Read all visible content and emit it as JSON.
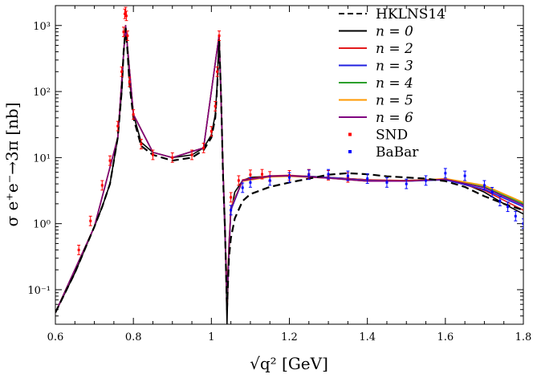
{
  "chart_data": {
    "type": "line",
    "title": "",
    "xlabel": "√q² [GeV]",
    "ylabel": "σ e⁺e⁻→3π [nb]",
    "x_scale": "linear",
    "y_scale": "log",
    "xlim": [
      0.6,
      1.8
    ],
    "ylim": [
      0.03,
      2000
    ],
    "x_ticks": [
      0.6,
      0.8,
      1.0,
      1.2,
      1.4,
      1.6,
      1.8
    ],
    "x_tick_labels": [
      "0.6",
      "0.8",
      "1",
      "1.2",
      "1.4",
      "1.6",
      "1.8"
    ],
    "y_ticks": [
      0.1,
      1,
      10,
      100,
      1000
    ],
    "y_tick_labels": [
      "10⁻¹",
      "10⁰",
      "10¹",
      "10²",
      "10³"
    ],
    "series": [
      {
        "name": "HKLNS14",
        "style": "dashed",
        "color": "#000000",
        "x": [
          0.6,
          0.65,
          0.7,
          0.72,
          0.74,
          0.76,
          0.77,
          0.775,
          0.78,
          0.785,
          0.79,
          0.8,
          0.82,
          0.85,
          0.9,
          0.95,
          0.98,
          1.0,
          1.01,
          1.015,
          1.02,
          1.025,
          1.03,
          1.035,
          1.04,
          1.045,
          1.05,
          1.06,
          1.08,
          1.1,
          1.15,
          1.2,
          1.25,
          1.3,
          1.35,
          1.4,
          1.45,
          1.5,
          1.55,
          1.6,
          1.65,
          1.7,
          1.75,
          1.8
        ],
        "y": [
          0.045,
          0.18,
          0.9,
          1.8,
          4,
          20,
          100,
          400,
          900,
          400,
          130,
          40,
          15,
          11,
          9,
          10,
          13,
          20,
          40,
          120,
          600,
          80,
          5,
          0.8,
          0.05,
          0.3,
          0.6,
          1.2,
          2.2,
          2.8,
          3.6,
          4.2,
          4.8,
          5.5,
          5.8,
          5.6,
          5.2,
          5.0,
          4.8,
          4.4,
          3.6,
          2.6,
          2.0,
          1.6
        ]
      },
      {
        "name": "n = 0",
        "style": "solid",
        "color": "#000000",
        "x": [
          0.6,
          0.65,
          0.7,
          0.72,
          0.74,
          0.76,
          0.77,
          0.775,
          0.78,
          0.785,
          0.79,
          0.8,
          0.82,
          0.85,
          0.9,
          0.95,
          0.98,
          1.0,
          1.01,
          1.015,
          1.02,
          1.025,
          1.03,
          1.035,
          1.04,
          1.045,
          1.05,
          1.06,
          1.08,
          1.1,
          1.15,
          1.2,
          1.25,
          1.3,
          1.35,
          1.4,
          1.45,
          1.5,
          1.55,
          1.6,
          1.65,
          1.7,
          1.75,
          1.8
        ],
        "y": [
          0.045,
          0.18,
          0.9,
          1.8,
          4,
          20,
          100,
          400,
          1000,
          450,
          150,
          45,
          17,
          12,
          10,
          11,
          14,
          22,
          45,
          130,
          700,
          90,
          6,
          1.0,
          0.03,
          0.5,
          1.5,
          3.0,
          4.5,
          5.0,
          5.2,
          5.3,
          5.2,
          5.0,
          4.8,
          4.6,
          4.5,
          4.5,
          4.6,
          4.6,
          4.0,
          3.0,
          2.0,
          1.4
        ]
      },
      {
        "name": "n = 2",
        "style": "solid",
        "color": "#e31a1c",
        "x": [
          0.6,
          0.7,
          0.76,
          0.78,
          0.8,
          0.85,
          0.9,
          0.98,
          1.02,
          1.03,
          1.04,
          1.05,
          1.08,
          1.15,
          1.2,
          1.3,
          1.4,
          1.5,
          1.6,
          1.7,
          1.8
        ],
        "y": [
          0.045,
          0.9,
          20,
          1000,
          45,
          12,
          10,
          14,
          720,
          6,
          0.06,
          1.6,
          4.6,
          5.3,
          5.4,
          5.0,
          4.6,
          4.5,
          4.7,
          3.2,
          1.6
        ]
      },
      {
        "name": "n = 3",
        "style": "solid",
        "color": "#1f1fe0",
        "x": [
          0.6,
          0.7,
          0.76,
          0.78,
          0.8,
          0.85,
          0.9,
          0.98,
          1.02,
          1.03,
          1.04,
          1.05,
          1.08,
          1.15,
          1.2,
          1.3,
          1.4,
          1.5,
          1.6,
          1.7,
          1.8
        ],
        "y": [
          0.045,
          0.9,
          20,
          1000,
          45,
          12,
          10,
          14,
          720,
          6,
          0.07,
          1.6,
          4.5,
          5.2,
          5.3,
          5.0,
          4.5,
          4.4,
          4.6,
          3.3,
          1.8
        ]
      },
      {
        "name": "n = 4",
        "style": "solid",
        "color": "#2ca02c",
        "x": [
          0.6,
          0.7,
          0.76,
          0.78,
          0.8,
          0.85,
          0.9,
          0.98,
          1.02,
          1.03,
          1.04,
          1.05,
          1.08,
          1.15,
          1.2,
          1.3,
          1.4,
          1.5,
          1.6,
          1.7,
          1.8
        ],
        "y": [
          0.045,
          0.9,
          20,
          1000,
          45,
          12,
          10,
          14,
          720,
          6,
          0.08,
          1.7,
          4.5,
          5.2,
          5.3,
          4.9,
          4.4,
          4.4,
          4.7,
          3.6,
          2.0
        ]
      },
      {
        "name": "n = 5",
        "style": "solid",
        "color": "#ff9900",
        "x": [
          0.6,
          0.7,
          0.76,
          0.78,
          0.8,
          0.85,
          0.9,
          0.98,
          1.02,
          1.03,
          1.04,
          1.05,
          1.08,
          1.15,
          1.2,
          1.3,
          1.4,
          1.5,
          1.6,
          1.7,
          1.8
        ],
        "y": [
          0.045,
          0.9,
          20,
          1000,
          45,
          12,
          10,
          14,
          720,
          6,
          0.1,
          1.8,
          4.4,
          5.1,
          5.2,
          4.9,
          4.4,
          4.4,
          4.8,
          3.8,
          2.1
        ]
      },
      {
        "name": "n = 6",
        "style": "solid",
        "color": "#800080",
        "x": [
          0.6,
          0.7,
          0.76,
          0.78,
          0.8,
          0.85,
          0.9,
          0.98,
          1.02,
          1.03,
          1.04,
          1.05,
          1.08,
          1.15,
          1.2,
          1.3,
          1.4,
          1.5,
          1.6,
          1.7,
          1.8
        ],
        "y": [
          0.045,
          0.9,
          20,
          1000,
          45,
          12,
          10,
          14,
          720,
          6,
          0.09,
          1.7,
          4.5,
          5.2,
          5.3,
          4.9,
          4.4,
          4.4,
          4.7,
          3.5,
          1.9
        ]
      }
    ],
    "scatter": [
      {
        "name": "SND",
        "color": "#ff0000",
        "x": [
          0.66,
          0.69,
          0.72,
          0.74,
          0.76,
          0.77,
          0.775,
          0.778,
          0.78,
          0.782,
          0.785,
          0.79,
          0.8,
          0.82,
          0.85,
          0.9,
          0.95,
          0.98,
          1.0,
          1.01,
          1.015,
          1.02,
          1.05,
          1.07,
          1.1,
          1.13,
          1.15,
          1.2,
          1.25,
          1.3,
          1.35
        ],
        "y": [
          0.4,
          1.1,
          3.8,
          9,
          30,
          200,
          800,
          1500,
          1600,
          1400,
          700,
          140,
          45,
          16,
          11,
          10,
          11,
          14,
          25,
          60,
          200,
          700,
          2.5,
          4.5,
          5.5,
          5.6,
          5.2,
          5.4,
          5.6,
          5.4,
          5.0
        ]
      },
      {
        "name": "BaBar",
        "color": "#0000ff",
        "x": [
          1.05,
          1.08,
          1.1,
          1.15,
          1.2,
          1.25,
          1.3,
          1.35,
          1.4,
          1.45,
          1.5,
          1.55,
          1.6,
          1.65,
          1.7,
          1.72,
          1.74,
          1.76,
          1.78,
          1.8
        ],
        "y": [
          1.6,
          3.5,
          4.2,
          4.5,
          5.0,
          5.5,
          5.6,
          5.3,
          4.8,
          4.2,
          4.0,
          4.5,
          5.8,
          5.3,
          3.8,
          3.0,
          2.2,
          1.8,
          1.3,
          1.0
        ]
      }
    ],
    "legend": {
      "position": "top-right",
      "entries": [
        {
          "label": "HKLNS14",
          "kind": "line",
          "style": "dashed",
          "color": "#000000",
          "italic": false
        },
        {
          "label": "n = 0",
          "kind": "line",
          "style": "solid",
          "color": "#000000",
          "italic": true
        },
        {
          "label": "n = 2",
          "kind": "line",
          "style": "solid",
          "color": "#e31a1c",
          "italic": true
        },
        {
          "label": "n = 3",
          "kind": "line",
          "style": "solid",
          "color": "#1f1fe0",
          "italic": true
        },
        {
          "label": "n = 4",
          "kind": "line",
          "style": "solid",
          "color": "#2ca02c",
          "italic": true
        },
        {
          "label": "n = 5",
          "kind": "line",
          "style": "solid",
          "color": "#ff9900",
          "italic": true
        },
        {
          "label": "n = 6",
          "kind": "line",
          "style": "solid",
          "color": "#800080",
          "italic": true
        },
        {
          "label": "SND",
          "kind": "point",
          "color": "#ff0000",
          "italic": false
        },
        {
          "label": "BaBar",
          "kind": "point",
          "color": "#0000ff",
          "italic": false
        }
      ]
    }
  }
}
